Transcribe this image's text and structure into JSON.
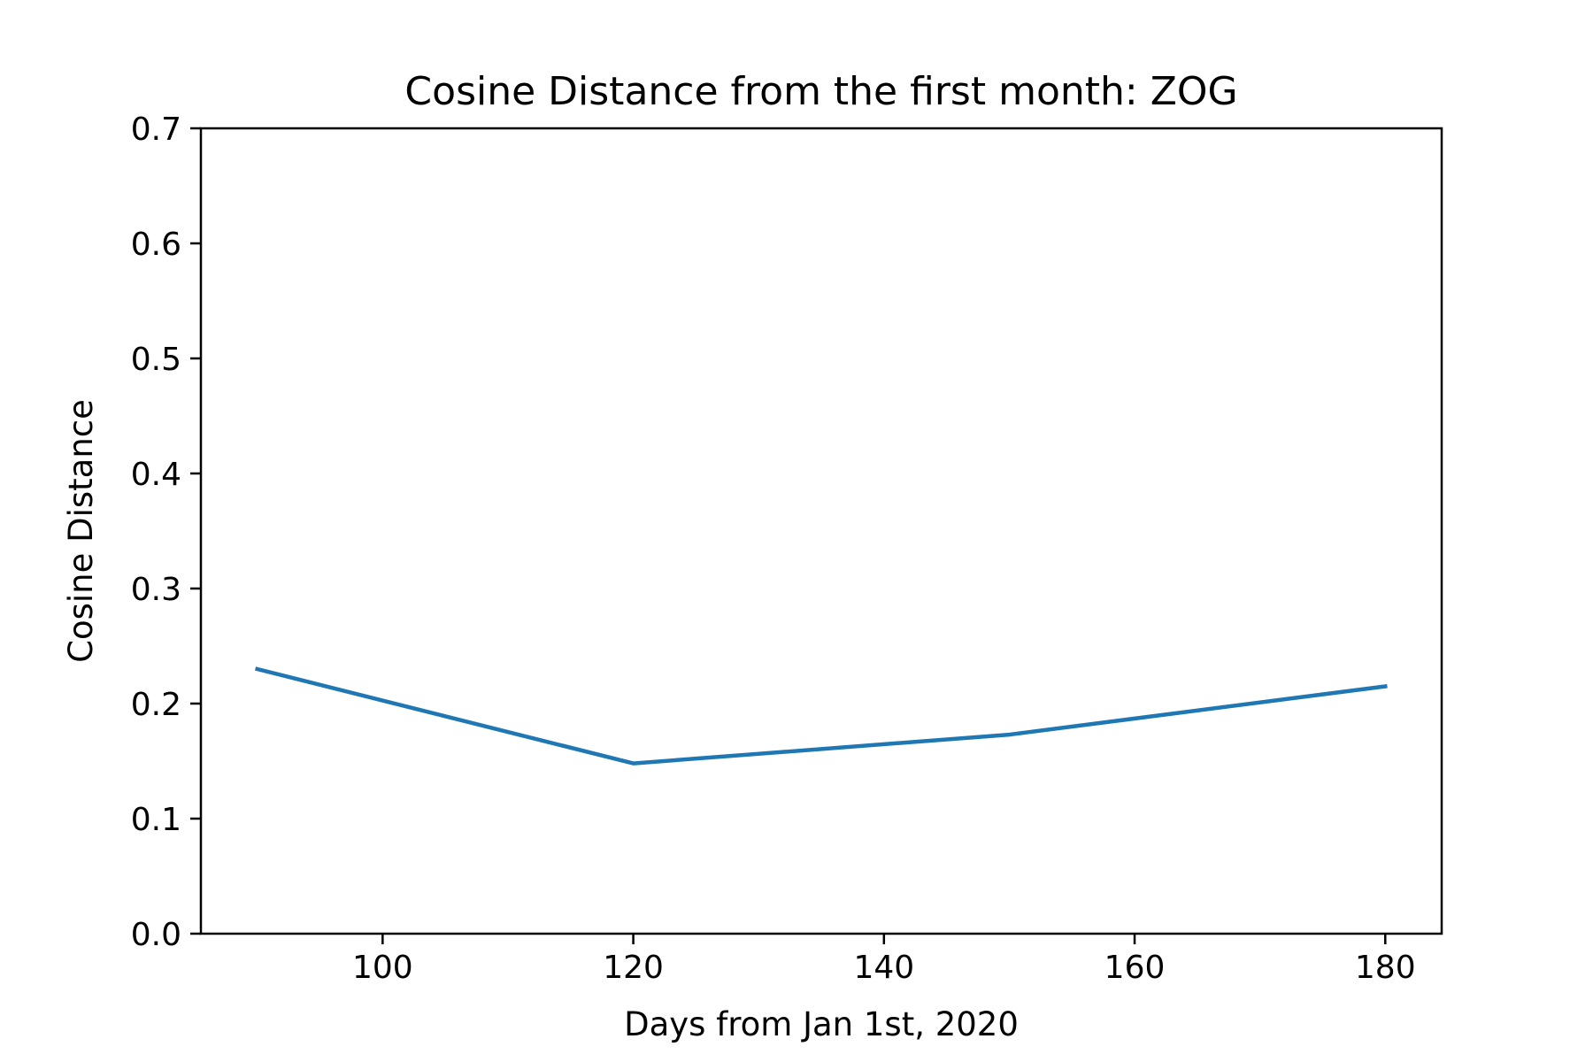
{
  "chart_data": {
    "type": "line",
    "title": "Cosine Distance from the first month: ZOG",
    "xlabel": "Days from Jan 1st, 2020",
    "ylabel": "Cosine Distance",
    "xlim": [
      85.5,
      184.5
    ],
    "ylim": [
      0,
      0.7
    ],
    "xticks": [
      100,
      120,
      140,
      160,
      180
    ],
    "yticks": [
      0.0,
      0.1,
      0.2,
      0.3,
      0.4,
      0.5,
      0.6,
      0.7
    ],
    "x_tick_labels": [
      "100",
      "120",
      "140",
      "160",
      "180"
    ],
    "y_tick_labels": [
      "0.0",
      "0.1",
      "0.2",
      "0.3",
      "0.4",
      "0.5",
      "0.6",
      "0.7"
    ],
    "grid": false,
    "legend": "none",
    "series": [
      {
        "x": [
          90,
          120,
          150,
          180
        ],
        "y": [
          0.23,
          0.148,
          0.173,
          0.215
        ],
        "color": "#1f77b4"
      }
    ]
  }
}
